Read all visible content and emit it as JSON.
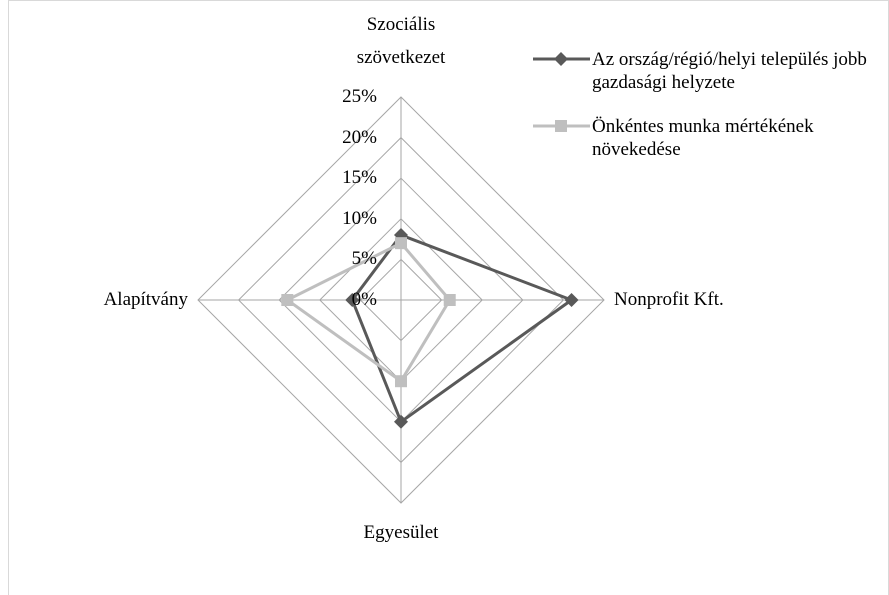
{
  "chart_data": {
    "type": "radar",
    "categories": [
      "Szociális szövetkezet",
      "Nonprofit Kft.",
      "Egyesület",
      "Alapítvány"
    ],
    "series": [
      {
        "name": "Az ország/régió/helyi település jobb gazdasági helyzete",
        "color": "#595959",
        "marker": "diamond",
        "values": [
          8,
          21,
          15,
          6
        ]
      },
      {
        "name": "Önkéntes munka mértékének növekedése",
        "color": "#bfbfbf",
        "marker": "square",
        "values": [
          7,
          6,
          10,
          14
        ]
      }
    ],
    "ylim": [
      0,
      25
    ],
    "yticks": [
      {
        "value": 0,
        "label": "0%"
      },
      {
        "value": 5,
        "label": "5%"
      },
      {
        "value": 10,
        "label": "10%"
      },
      {
        "value": 15,
        "label": "15%"
      },
      {
        "value": 20,
        "label": "20%"
      },
      {
        "value": 25,
        "label": "25%"
      }
    ],
    "grid": true,
    "legend": "top-right"
  }
}
